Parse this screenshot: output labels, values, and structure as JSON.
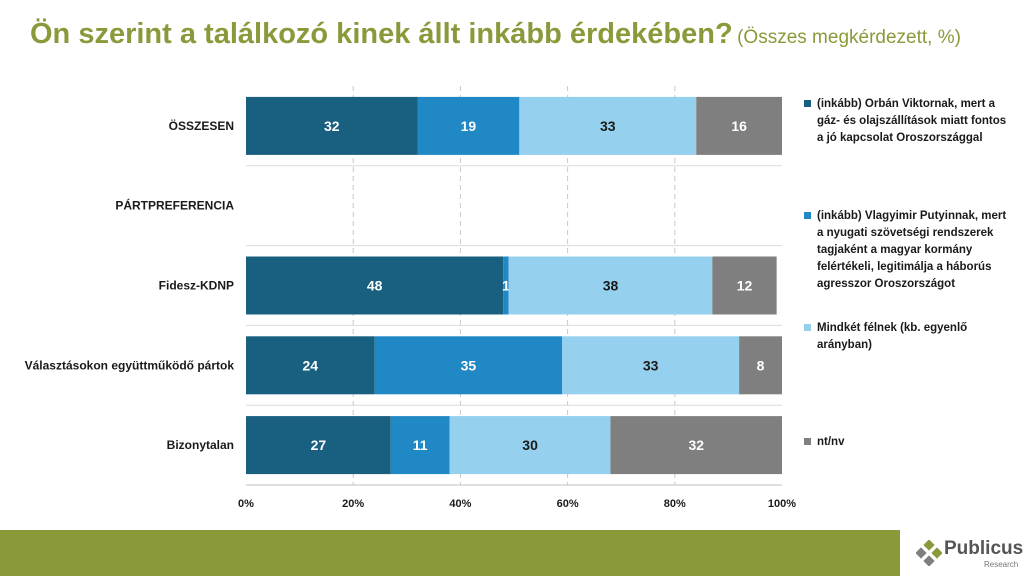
{
  "title": {
    "main": "Ön szerint a találkozó kinek állt inkább érdekében?",
    "sub": "(Összes megkérdezett, %)"
  },
  "chart_data": {
    "type": "bar",
    "orientation": "horizontal",
    "stacked": true,
    "title": "Ön szerint a találkozó kinek állt inkább érdekében? (Összes megkérdezett, %)",
    "categories": [
      "ÖSSZESEN",
      "PÁRTPREFERENCIA",
      "Fidesz-KDNP",
      "Választásokon együttműködő pártok",
      "Bizonytalan"
    ],
    "series": [
      {
        "name": "(inkább) Orbán Viktornak, mert a gáz- és olajszállítások miatt fontos a jó kapcsolat Oroszországgal",
        "color": "#185f80",
        "values": [
          32,
          null,
          48,
          24,
          27
        ]
      },
      {
        "name": "(inkább) Vlagyimir Putyinnak, mert a nyugati szövetségi rendszerek tagjaként a magyar kormány felértékeli, legitimálja a háborús agresszor Oroszországot",
        "color": "#2088c5",
        "values": [
          19,
          null,
          1,
          35,
          11
        ]
      },
      {
        "name": "Mindkét félnek (kb. egyenlő arányban)",
        "color": "#95d0ee",
        "values": [
          33,
          null,
          38,
          33,
          30
        ]
      },
      {
        "name": "nt/nv",
        "color": "#7f7f7f",
        "values": [
          16,
          null,
          12,
          8,
          32
        ]
      }
    ],
    "xlim": [
      0,
      100
    ],
    "x_ticks": [
      0,
      20,
      40,
      60,
      80,
      100
    ],
    "x_tick_labels": [
      "0%",
      "20%",
      "40%",
      "60%",
      "80%",
      "100%"
    ],
    "grid": true,
    "legend_position": "right"
  },
  "branding": {
    "logo_text": "Publicus",
    "logo_sub": "Research",
    "footer_color": "#8a9a3b"
  }
}
